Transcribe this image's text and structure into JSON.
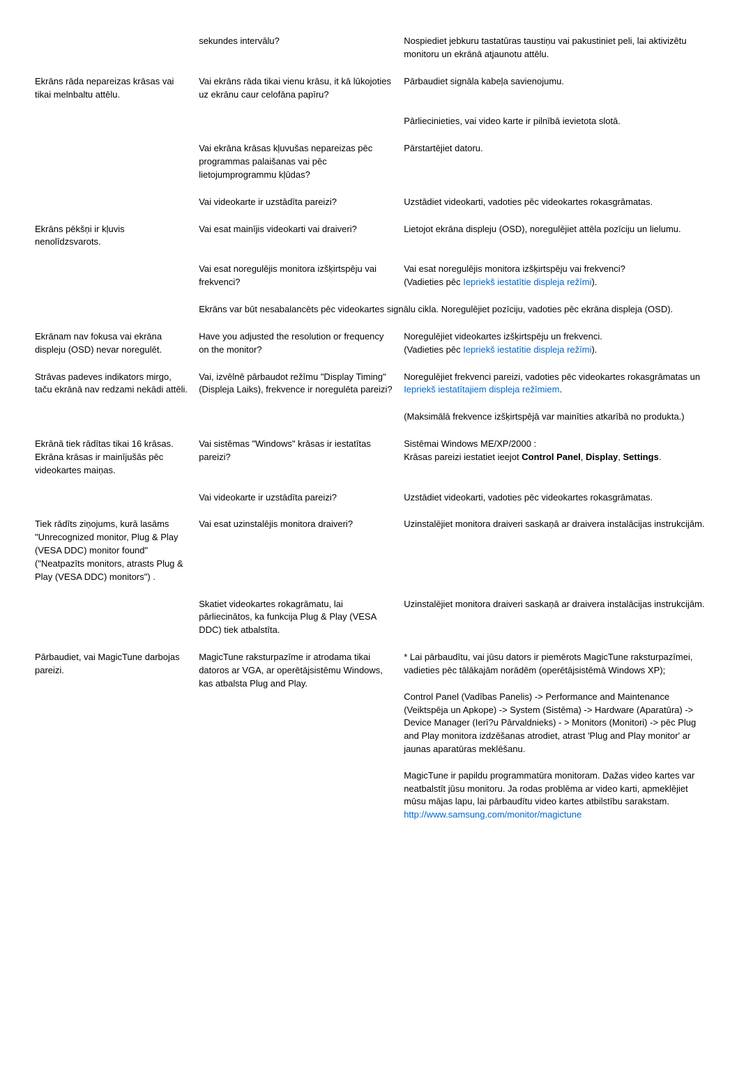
{
  "rows": [
    {
      "c1": "",
      "c2": "sekundes intervālu?",
      "c3": "Nospiediet jebkuru tastatūras taustiņu vai pakustiniet peli, lai aktivizētu monitoru un ekrānā atjaunotu attēlu."
    },
    {
      "c1": "Ekrāns rāda nepareizas krāsas vai tikai melnbaltu attēlu.",
      "c2": "Vai ekrāns rāda tikai vienu krāsu, it kā lūkojoties uz ekrānu caur celofāna papīru?",
      "c3": "Pārbaudiet signāla kabeļa savienojumu."
    },
    {
      "c1": "",
      "c2": "",
      "c3": "Pārliecinieties, vai video karte ir pilnībā ievietota slotā."
    },
    {
      "c1": "",
      "c2": "Vai ekrāna krāsas kļuvušas nepareizas pēc programmas palaišanas vai pēc lietojumprogrammu kļūdas?",
      "c3": "Pārstartējiet datoru."
    },
    {
      "c1": "",
      "c2": "Vai videokarte ir uzstādīta pareizi?",
      "c3": "Uzstādiet videokarti, vadoties pēc videokartes rokasgrāmatas."
    },
    {
      "c1": "Ekrāns pēkšņi ir kļuvis nenolīdzsvarots.",
      "c2": "Vai esat mainījis videokarti vai draiveri?",
      "c3": "Lietojot ekrāna displeju (OSD), noregulējiet attēla pozīciju un lielumu."
    },
    {
      "c1": "",
      "c2": "Vai esat noregulējis monitora izšķirtspēju vai frekvenci?",
      "c3_html": "Vai esat noregulējis monitora izšķirtspēju vai frekvenci?<br>(Vadieties pēc <span class=\"link\">Iepriekš iestatītie displeja režīmi</span>)."
    },
    {
      "span23": "Ekrāns var būt nesabalancēts pēc videokartes signālu cikla. Noregulējiet pozīciju, vadoties pēc ekrāna displeja (OSD)."
    },
    {
      "c1": "Ekrānam nav fokusa vai ekrāna displeju (OSD) nevar noregulēt.",
      "c2": "Have you adjusted the resolution or frequency on the monitor?",
      "c3_html": "Noregulējiet videokartes izšķirtspēju un frekvenci.<br>(Vadieties pēc <span class=\"link\">Iepriekš iestatītie displeja režīmi</span>)."
    },
    {
      "c1": "Strāvas padeves indikators mirgo, taču ekrānā nav redzami nekādi attēli.",
      "c2": "Vai, izvēlnē pārbaudot režīmu \"Display Timing\" (Displeja Laiks), frekvence ir noregulēta pareizi?",
      "c3_html": "Noregulējiet frekvenci pareizi, vadoties pēc videokartes rokasgrāmatas un <span class=\"link\">Iepriekš iestatītajiem displeja režīmiem</span>."
    },
    {
      "c1": "",
      "c2": "",
      "c3": "(Maksimālā frekvence izšķirtspējā var mainīties atkarībā no produkta.)"
    },
    {
      "c1": "Ekrānā tiek rādītas tikai 16 krāsas. Ekrāna krāsas ir mainījušās pēc videokartes maiņas.",
      "c2": "Vai sistēmas \"Windows\" krāsas ir iestatītas pareizi?",
      "c3_html": "Sistēmai Windows ME/XP/2000 :<br>Krāsas pareizi iestatiet ieejot <b>Control Panel</b>, <b>Display</b>, <b>Settings</b>."
    },
    {
      "c1": "",
      "c2": "Vai videokarte ir uzstādīta pareizi?",
      "c3": "Uzstādiet videokarti, vadoties pēc videokartes rokasgrāmatas."
    },
    {
      "c1": "Tiek rādīts ziņojums, kurā lasāms \"Unrecognized monitor, Plug & Play (VESA DDC) monitor found\" (\"Neatpazīts monitors, atrasts Plug & Play (VESA DDC) monitors\") .",
      "c2": "Vai esat uzinstalējis monitora draiveri?",
      "c3": "Uzinstalējiet monitora draiveri saskaņā ar draivera instalācijas instrukcijām."
    },
    {
      "c1": "",
      "c2": "Skatiet videokartes rokagrāmatu, lai pārliecinātos, ka funkcija Plug & Play (VESA DDC) tiek atbalstīta.",
      "c3": "Uzinstalējiet monitora draiveri saskaņā ar draivera instalācijas instrukcijām."
    },
    {
      "c1": "Pārbaudiet, vai MagicTune darbojas pareizi.",
      "c2": "MagicTune raksturpazīme ir atrodama tikai datoros ar VGA, ar operētājsistēmu Windows, kas atbalsta Plug and Play.",
      "c3_html": "* Lai pārbaudītu, vai jūsu dators ir piemērots MagicTune raksturpazīmei, vadieties pēc tālākajām norādēm (operētājsistēmā Windows XP);<br><br>Control Panel (Vadības Panelis) -> Performance and Maintenance (Veiktspēja un Apkope) -> System (Sistēma) -> Hardware (Aparatūra) -> Device Manager (Ierī?u Pārvaldnieks) - > Monitors (Monitori) -> pēc Plug and Play monitora izdzēšanas atrodiet, atrast 'Plug and Play monitor' ar jaunas aparatūras meklēšanu.<br><br>MagicTune ir papildu programmatūra monitoram. Dažas video kartes var neatbalstīt jūsu monitoru. Ja rodas problēma ar video karti, apmeklējiet mūsu mājas lapu, lai pārbaudītu video kartes atbilstību sarakstam.<br><span class=\"link\">http://www.samsung.com/monitor/magictune</span>"
    }
  ]
}
